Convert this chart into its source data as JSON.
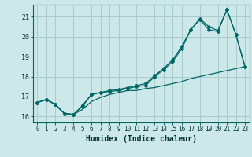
{
  "xlabel": "Humidex (Indice chaleur)",
  "background_color": "#cce8e8",
  "grid_color": "#aacccc",
  "line_color": "#006666",
  "xlim": [
    -0.5,
    23.5
  ],
  "ylim": [
    15.7,
    21.6
  ],
  "yticks": [
    16,
    17,
    18,
    19,
    20,
    21
  ],
  "xticks": [
    0,
    1,
    2,
    3,
    4,
    5,
    6,
    7,
    8,
    9,
    10,
    11,
    12,
    13,
    14,
    15,
    16,
    17,
    18,
    19,
    20,
    21,
    22,
    23
  ],
  "series1_x": [
    0,
    1,
    2,
    3,
    4,
    5,
    6,
    7,
    8,
    9,
    10,
    11,
    12,
    13,
    14,
    15,
    16,
    17,
    18,
    19,
    20,
    21,
    22,
    23
  ],
  "series1_y": [
    16.7,
    16.85,
    16.6,
    16.15,
    16.1,
    16.35,
    16.75,
    16.95,
    17.1,
    17.2,
    17.3,
    17.3,
    17.4,
    17.45,
    17.55,
    17.65,
    17.75,
    17.9,
    18.0,
    18.1,
    18.2,
    18.3,
    18.4,
    18.5
  ],
  "series2_x": [
    0,
    1,
    2,
    3,
    4,
    5,
    6,
    7,
    8,
    9,
    10,
    11,
    12,
    13,
    14,
    15,
    16,
    17,
    18,
    19,
    20,
    21,
    22,
    23
  ],
  "series2_y": [
    16.7,
    16.85,
    16.6,
    16.15,
    16.1,
    16.5,
    17.1,
    17.2,
    17.25,
    17.3,
    17.4,
    17.5,
    17.55,
    18.0,
    18.35,
    18.75,
    19.4,
    20.35,
    20.85,
    20.35,
    20.25,
    21.35,
    20.1,
    18.5
  ],
  "series3_x": [
    0,
    1,
    2,
    3,
    4,
    5,
    6,
    7,
    8,
    9,
    10,
    11,
    12,
    13,
    14,
    15,
    16,
    17,
    18,
    19,
    20,
    21,
    22,
    23
  ],
  "series3_y": [
    16.7,
    16.85,
    16.6,
    16.15,
    16.1,
    16.55,
    17.1,
    17.2,
    17.3,
    17.35,
    17.45,
    17.55,
    17.65,
    18.05,
    18.4,
    18.85,
    19.5,
    20.35,
    20.9,
    20.5,
    20.3,
    21.35,
    20.1,
    18.5
  ]
}
